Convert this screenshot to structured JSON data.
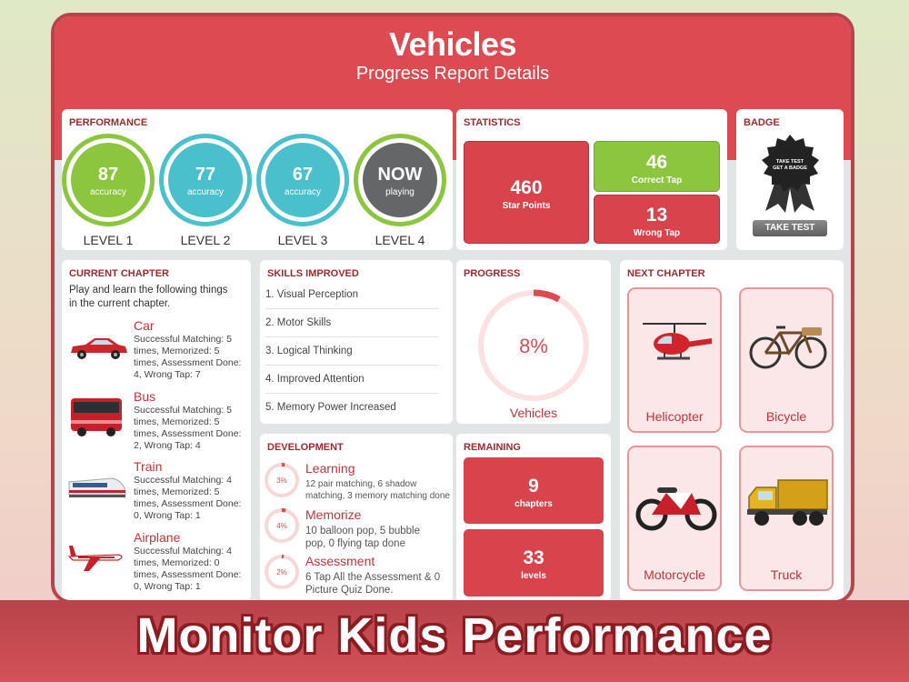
{
  "header": {
    "title": "Vehicles",
    "subtitle": "Progress Report Details"
  },
  "performance": {
    "title": "PERFORMANCE",
    "levels": [
      {
        "value": "87",
        "sub": "accuracy",
        "label": "LEVEL 1",
        "ring_color": "#8cc63f",
        "fill_color": "#8cc63f"
      },
      {
        "value": "77",
        "sub": "accuracy",
        "label": "LEVEL 2",
        "ring_color": "#49c0cc",
        "fill_color": "#49c0cc"
      },
      {
        "value": "67",
        "sub": "accuracy",
        "label": "LEVEL 3",
        "ring_color": "#49c0cc",
        "fill_color": "#49c0cc"
      },
      {
        "value": "NOW",
        "sub": "playing",
        "label": "LEVEL 4",
        "ring_color": "#8cc63f",
        "fill_color": "#656668"
      }
    ]
  },
  "statistics": {
    "title": "STATISTICS",
    "star_points": {
      "value": "460",
      "label": "Star Points"
    },
    "correct_tap": {
      "value": "46",
      "label": "Correct Tap"
    },
    "wrong_tap": {
      "value": "13",
      "label": "Wrong Tap"
    }
  },
  "badge": {
    "title": "BADGE",
    "badge_text_1": "TAKE TEST",
    "badge_text_2": "GET A BADGE",
    "button": "TAKE TEST"
  },
  "current_chapter": {
    "title": "CURRENT CHAPTER",
    "description": "Play and learn the following things in the current chapter.",
    "items": [
      {
        "name": "Car",
        "text": "Successful Matching: 5 times, Memorized: 5 times, Assessment Done: 4, Wrong Tap: 7",
        "icon": "car-icon"
      },
      {
        "name": "Bus",
        "text": "Successful Matching: 5 times, Memorized: 5 times, Assessment Done: 2, Wrong Tap: 4",
        "icon": "bus-icon"
      },
      {
        "name": "Train",
        "text": "Successful Matching: 4 times, Memorized: 5 times, Assessment Done: 0, Wrong Tap: 1",
        "icon": "train-icon"
      },
      {
        "name": "Airplane",
        "text": "Successful Matching: 4 times, Memorized: 0 times, Assessment Done: 0, Wrong Tap: 1",
        "icon": "airplane-icon"
      }
    ]
  },
  "skills": {
    "title": "SKILLS IMPROVED",
    "items": [
      "1. Visual Perception",
      "2. Motor Skills",
      "3. Logical Thinking",
      "4. Improved Attention",
      "5. Memory Power Increased"
    ]
  },
  "development": {
    "title": "DEVELOPMENT",
    "items": [
      {
        "pct": "3%",
        "fraction": 0.03,
        "name": "Learning",
        "text": "12 pair matching, 6 shadow matching, 3 memory matching done"
      },
      {
        "pct": "4%",
        "fraction": 0.04,
        "name": "Memorize",
        "text": "10 balloon pop, 5 bubble pop, 0 flying tap done"
      },
      {
        "pct": "2%",
        "fraction": 0.02,
        "name": "Assessment",
        "text": "6 Tap All the Assessment & 0 Picture Quiz Done."
      }
    ]
  },
  "progress": {
    "title": "PROGRESS",
    "percent": "8%",
    "fraction": 0.08,
    "label": "Vehicles"
  },
  "remaining": {
    "title": "REMAINING",
    "chapters": {
      "value": "9",
      "label": "chapters"
    },
    "levels": {
      "value": "33",
      "label": "levels"
    }
  },
  "next_chapter": {
    "title": "NEXT CHAPTER",
    "items": [
      {
        "name": "Helicopter",
        "icon": "helicopter-icon"
      },
      {
        "name": "Bicycle",
        "icon": "bicycle-icon"
      },
      {
        "name": "Motorcycle",
        "icon": "motorcycle-icon"
      },
      {
        "name": "Truck",
        "icon": "truck-icon"
      }
    ]
  },
  "banner": {
    "text": "Monitor Kids Performance"
  },
  "colors": {
    "accent": "#dd4a52",
    "dark_red": "#9e2a30",
    "green": "#8cc63f",
    "teal": "#49c0cc",
    "tile_red": "#d9434c"
  }
}
